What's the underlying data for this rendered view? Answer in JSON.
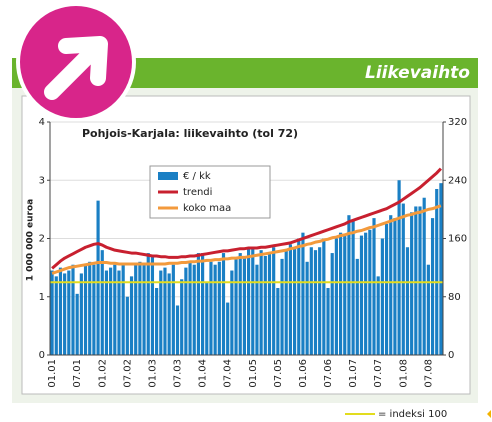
{
  "header": "Liikevaihto",
  "chart_data": {
    "type": "bar",
    "title": "Pohjois-Karjala: liikevaihto (tol 72)",
    "ylabel": "1 000 000 euroa",
    "categories": [
      "01.01",
      null,
      null,
      null,
      null,
      null,
      "07.01",
      null,
      null,
      null,
      null,
      null,
      "01.02",
      null,
      null,
      null,
      null,
      null,
      "07.02",
      null,
      null,
      null,
      null,
      null,
      "01.03",
      null,
      null,
      null,
      null,
      null,
      "07.03",
      null,
      null,
      null,
      null,
      null,
      "01.04",
      null,
      null,
      null,
      null,
      null,
      "07.04",
      null,
      null,
      null,
      null,
      null,
      "01.05",
      null,
      null,
      null,
      null,
      null,
      "07.05",
      null,
      null,
      null,
      null,
      null,
      "01.06",
      null,
      null,
      null,
      null,
      null,
      "07.06",
      null,
      null,
      null,
      null,
      null,
      "01.07",
      null,
      null,
      null,
      null,
      null,
      "07.07",
      null,
      null,
      null,
      null,
      null,
      "01.08",
      null,
      null,
      null,
      null,
      null,
      "07.08",
      null,
      null,
      null
    ],
    "series": [
      {
        "name": "€ / kk",
        "color": "#1a7fc4",
        "values": [
          1.45,
          1.35,
          1.5,
          1.4,
          1.45,
          1.55,
          1.05,
          1.4,
          1.55,
          1.6,
          1.55,
          2.65,
          1.8,
          1.45,
          1.5,
          1.55,
          1.45,
          1.55,
          1.0,
          1.35,
          1.55,
          1.6,
          1.55,
          1.75,
          1.7,
          1.15,
          1.45,
          1.5,
          1.4,
          1.55,
          0.85,
          1.3,
          1.5,
          1.6,
          1.55,
          1.75,
          1.75,
          1.25,
          1.6,
          1.55,
          1.6,
          1.75,
          0.9,
          1.45,
          1.65,
          1.75,
          1.7,
          1.85,
          1.85,
          1.55,
          1.8,
          1.7,
          1.75,
          1.85,
          1.15,
          1.65,
          1.8,
          1.9,
          1.85,
          2.0,
          2.1,
          1.6,
          1.85,
          1.8,
          1.85,
          2.0,
          1.15,
          1.75,
          2.0,
          2.1,
          2.05,
          2.4,
          2.3,
          1.65,
          2.05,
          2.1,
          2.15,
          2.35,
          1.35,
          2.0,
          2.25,
          2.4,
          2.35,
          3.0,
          2.6,
          1.85,
          2.45,
          2.55,
          2.55,
          2.7,
          1.55,
          2.35,
          2.85,
          2.95
        ]
      },
      {
        "name": "trendi",
        "color": "#c8202f",
        "axis": "y2",
        "values": [
          119,
          124,
          129,
          133,
          136,
          139,
          142,
          145,
          148,
          150,
          152,
          153,
          151,
          148,
          146,
          144,
          143,
          142,
          141,
          140,
          140,
          139,
          138,
          137,
          136,
          136,
          135,
          135,
          134,
          134,
          134,
          135,
          135,
          136,
          136,
          137,
          138,
          139,
          140,
          141,
          142,
          143,
          143,
          144,
          145,
          146,
          146,
          147,
          147,
          147,
          148,
          148,
          149,
          150,
          151,
          152,
          153,
          154,
          156,
          158,
          160,
          162,
          164,
          166,
          168,
          170,
          172,
          174,
          176,
          178,
          180,
          183,
          185,
          187,
          189,
          191,
          193,
          195,
          197,
          199,
          201,
          204,
          207,
          210,
          214,
          218,
          222,
          226,
          230,
          235,
          240,
          245,
          250,
          256
        ]
      },
      {
        "name": "koko maa",
        "color": "#f39a3c",
        "axis": "y2",
        "values": [
          112,
          114,
          116,
          118,
          120,
          121,
          122,
          123,
          124,
          125,
          126,
          127,
          127,
          127,
          126,
          126,
          125,
          125,
          125,
          125,
          125,
          125,
          125,
          125,
          125,
          125,
          125,
          125,
          126,
          126,
          126,
          127,
          127,
          128,
          128,
          129,
          129,
          130,
          130,
          131,
          131,
          132,
          132,
          133,
          133,
          134,
          134,
          135,
          136,
          137,
          138,
          139,
          140,
          141,
          142,
          143,
          144,
          146,
          147,
          149,
          150,
          152,
          153,
          155,
          156,
          158,
          159,
          161,
          162,
          164,
          165,
          167,
          168,
          170,
          171,
          173,
          175,
          176,
          178,
          180,
          182,
          184,
          186,
          188,
          190,
          192,
          193,
          195,
          196,
          198,
          200,
          201,
          203,
          205
        ]
      }
    ],
    "reference_line": {
      "value": 100,
      "axis": "y2",
      "color": "#e2dc1e",
      "label": "= indeksi 100"
    },
    "ylim": [
      0,
      4
    ],
    "yticks": [
      0,
      1,
      2,
      3,
      4
    ],
    "y2lim": [
      0,
      320
    ],
    "y2ticks": [
      0,
      80,
      160,
      240,
      320
    ],
    "grid": true
  }
}
